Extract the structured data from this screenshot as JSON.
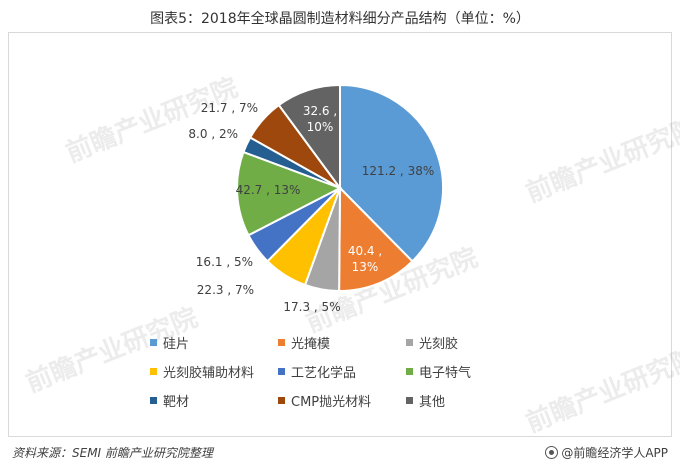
{
  "title": "图表5：2018年全球晶圆制造材料细分产品结构（单位：%）",
  "chart_data": {
    "type": "pie",
    "title": "图表5：2018年全球晶圆制造材料细分产品结构（单位：%）",
    "slices": [
      {
        "name": "硅片",
        "value": 121.2,
        "percent": 38,
        "color": "#5b9bd5",
        "label_line1": "121.2 , 38%",
        "label_line2": ""
      },
      {
        "name": "光掩模",
        "value": 40.4,
        "percent": 13,
        "color": "#ed7d31",
        "label_line1": "40.4 ,",
        "label_line2": "13%"
      },
      {
        "name": "光刻胶",
        "value": 17.3,
        "percent": 5,
        "color": "#a5a5a5",
        "label_line1": "17.3 , 5%",
        "label_line2": ""
      },
      {
        "name": "光刻胶辅助材料",
        "value": 22.3,
        "percent": 7,
        "color": "#ffc000",
        "label_line1": "22.3 , 7%",
        "label_line2": ""
      },
      {
        "name": "工艺化学品",
        "value": 16.1,
        "percent": 5,
        "color": "#4472c4",
        "label_line1": "16.1 , 5%",
        "label_line2": ""
      },
      {
        "name": "电子特气",
        "value": 42.7,
        "percent": 13,
        "color": "#70ad47",
        "label_line1": "42.7 , 13%",
        "label_line2": ""
      },
      {
        "name": "靶材",
        "value": 8.0,
        "percent": 2,
        "color": "#255e91",
        "label_line1": "8.0 , 2%",
        "label_line2": ""
      },
      {
        "name": "CMP抛光材料",
        "value": 21.7,
        "percent": 7,
        "color": "#9e480e",
        "label_line1": "21.7 , 7%",
        "label_line2": ""
      },
      {
        "name": "其他",
        "value": 32.6,
        "percent": 10,
        "color": "#636363",
        "label_line1": "32.6 ,",
        "label_line2": "10%"
      }
    ],
    "legend_position": "bottom"
  },
  "legend": [
    {
      "label": "硅片",
      "color": "#5b9bd5"
    },
    {
      "label": "光掩模",
      "color": "#ed7d31"
    },
    {
      "label": "光刻胶",
      "color": "#a5a5a5"
    },
    {
      "label": "光刻胶辅助材料",
      "color": "#ffc000"
    },
    {
      "label": "工艺化学品",
      "color": "#4472c4"
    },
    {
      "label": "电子特气",
      "color": "#70ad47"
    },
    {
      "label": "靶材",
      "color": "#255e91"
    },
    {
      "label": "CMP抛光材料",
      "color": "#9e480e"
    },
    {
      "label": "其他",
      "color": "#636363"
    }
  ],
  "footer": {
    "source": "资料来源：SEMI 前瞻产业研究院整理",
    "brand": "@前瞻经济学人APP"
  },
  "watermark": "前瞻产业研究院"
}
